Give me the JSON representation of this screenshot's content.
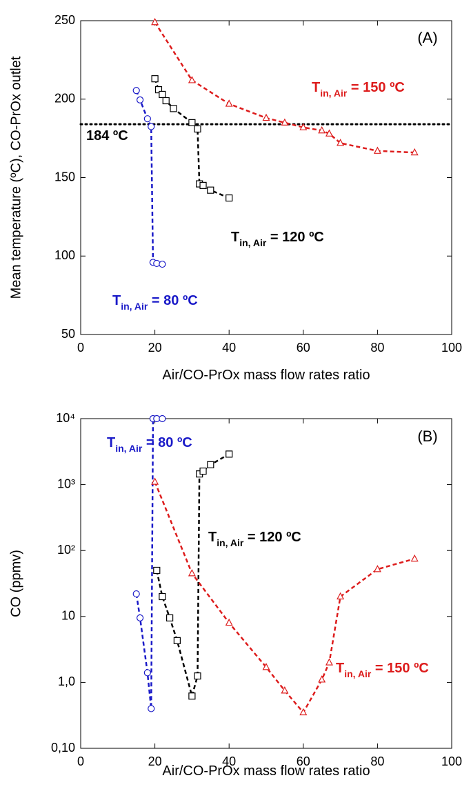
{
  "chart_data": [
    {
      "type": "line",
      "panel_label": "(A)",
      "x_label": "Air/CO-PrOx mass flow rates ratio",
      "y_label": "Mean temperature (ºC), CO-PrOx outlet",
      "xlim": [
        0,
        100
      ],
      "xticks": [
        0,
        20,
        40,
        60,
        80,
        100
      ],
      "ylim": [
        50,
        250
      ],
      "yticks": [
        50,
        100,
        150,
        200,
        250
      ],
      "hline": {
        "value": 184,
        "label": "184 ºC"
      },
      "series": [
        {
          "name": {
            "text": "T",
            "sub": "in, Air",
            "suffix": " = 80 ºC"
          },
          "color": "#1a1ac8",
          "marker": "circle",
          "x": [
            15,
            16,
            18,
            19,
            19.5,
            20.5,
            22
          ],
          "values": [
            205.5,
            199.5,
            187.5,
            182.5,
            96,
            95.3,
            94.8
          ]
        },
        {
          "name": {
            "text": "T",
            "sub": "in, Air",
            "suffix": " = 120 ºC"
          },
          "color": "#000000",
          "marker": "square",
          "x": [
            20,
            21,
            22,
            23,
            25,
            30,
            31.5,
            32,
            33,
            35,
            40
          ],
          "values": [
            213,
            206,
            203,
            199,
            194,
            185,
            181,
            146,
            145,
            142,
            137
          ]
        },
        {
          "name": {
            "text": "T",
            "sub": "in, Air",
            "suffix": " = 150 ºC"
          },
          "color": "#dd1c1c",
          "marker": "triangle",
          "x": [
            20,
            30,
            40,
            50,
            55,
            60,
            65,
            67,
            70,
            80,
            90
          ],
          "values": [
            249,
            212,
            197,
            188,
            185,
            182,
            180,
            178,
            172,
            167,
            166
          ]
        }
      ]
    },
    {
      "type": "line",
      "panel_label": "(B)",
      "log_y": true,
      "x_label": "Air/CO-PrOx mass flow rates ratio",
      "y_label": "CO (ppmv)",
      "xlim": [
        0,
        100
      ],
      "xticks": [
        0,
        20,
        40,
        60,
        80,
        100
      ],
      "ylim": [
        0.1,
        10000
      ],
      "yticks": [
        {
          "value": 0.1,
          "label": "0,10"
        },
        {
          "value": 1,
          "label": "1,0"
        },
        10,
        {
          "value": 100,
          "label": "10²"
        },
        {
          "value": 1000,
          "label": "10³"
        },
        {
          "value": 10000,
          "label": "10⁴"
        }
      ],
      "series": [
        {
          "name": {
            "text": "T",
            "sub": "in, Air",
            "suffix": " = 80 ºC"
          },
          "color": "#1a1ac8",
          "marker": "circle",
          "x": [
            15,
            16,
            18,
            19,
            19.5,
            20.5,
            22
          ],
          "values": [
            22,
            9.5,
            1.4,
            0.4,
            10000,
            10000,
            10000
          ]
        },
        {
          "name": {
            "text": "T",
            "sub": "in, Air",
            "suffix": " = 120 ºC"
          },
          "color": "#000000",
          "marker": "square",
          "x": [
            20.5,
            22,
            24,
            26,
            30,
            31.5,
            32,
            33,
            35,
            40
          ],
          "values": [
            50,
            20,
            9.5,
            4.3,
            0.62,
            1.25,
            1450,
            1600,
            2000,
            2900
          ]
        },
        {
          "name": {
            "text": "T",
            "sub": "in, Air",
            "suffix": " = 150 ºC"
          },
          "color": "#dd1c1c",
          "marker": "triangle",
          "x": [
            20,
            30,
            40,
            50,
            55,
            60,
            65,
            67,
            70,
            80,
            90
          ],
          "values": [
            1100,
            45,
            8,
            1.7,
            0.75,
            0.35,
            1.1,
            2,
            20,
            52,
            75
          ]
        }
      ]
    }
  ]
}
